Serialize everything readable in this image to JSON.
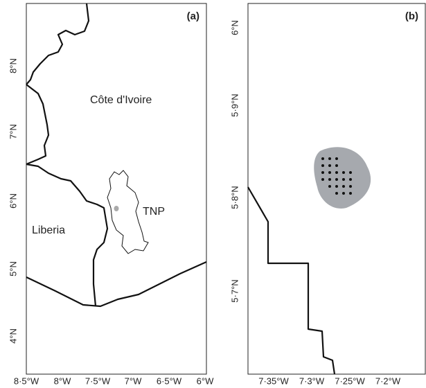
{
  "panels": [
    {
      "label": "(a)",
      "x_tick_labels": [
        "8·5°W",
        "8°W",
        "7·5°W",
        "7°W",
        "6·5°W",
        "6°W"
      ],
      "y_tick_labels": [
        "8°N",
        "7°N",
        "6°N",
        "5°N",
        "4°N"
      ],
      "places": [
        "Côte d'Ivoire",
        "Liberia",
        "TNP"
      ]
    },
    {
      "label": "(b)",
      "x_tick_labels": [
        "7·35°W",
        "7·3°W",
        "7·25°W",
        "7·2°W"
      ],
      "y_tick_labels": [
        "6°N",
        "5·9°N",
        "5·8°N",
        "5·7°N"
      ]
    }
  ]
}
